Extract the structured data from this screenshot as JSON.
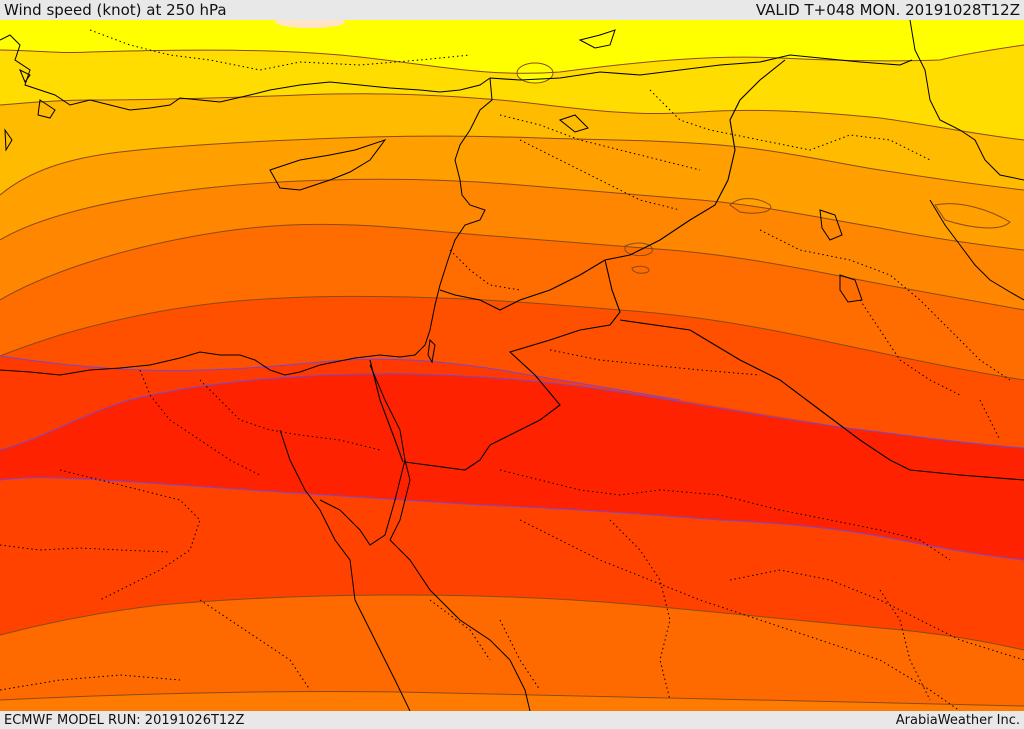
{
  "header": {
    "title": "Wind speed (knot) at 250 hPa",
    "valid": "VALID T+048 MON. 20191028T12Z"
  },
  "footer": {
    "model_run": "ECMWF MODEL RUN: 20191026T12Z",
    "credit": "ArabiaWeather Inc."
  },
  "map": {
    "field": "wind-speed-250hPa",
    "colors": {
      "band_yellow": "#ffff00",
      "band_gold": "#ffdd00",
      "band_amber": "#ffbb00",
      "band_orange_light": "#ff9f00",
      "band_orange": "#ff8600",
      "band_orange_dark": "#ff6c00",
      "band_red_orange": "#ff5000",
      "band_red": "#ff3a00",
      "band_core": "#ff2200",
      "jet_core_line": "#7a45d0",
      "contour_line": "#8a4a18",
      "coast_line": "#000000"
    }
  }
}
